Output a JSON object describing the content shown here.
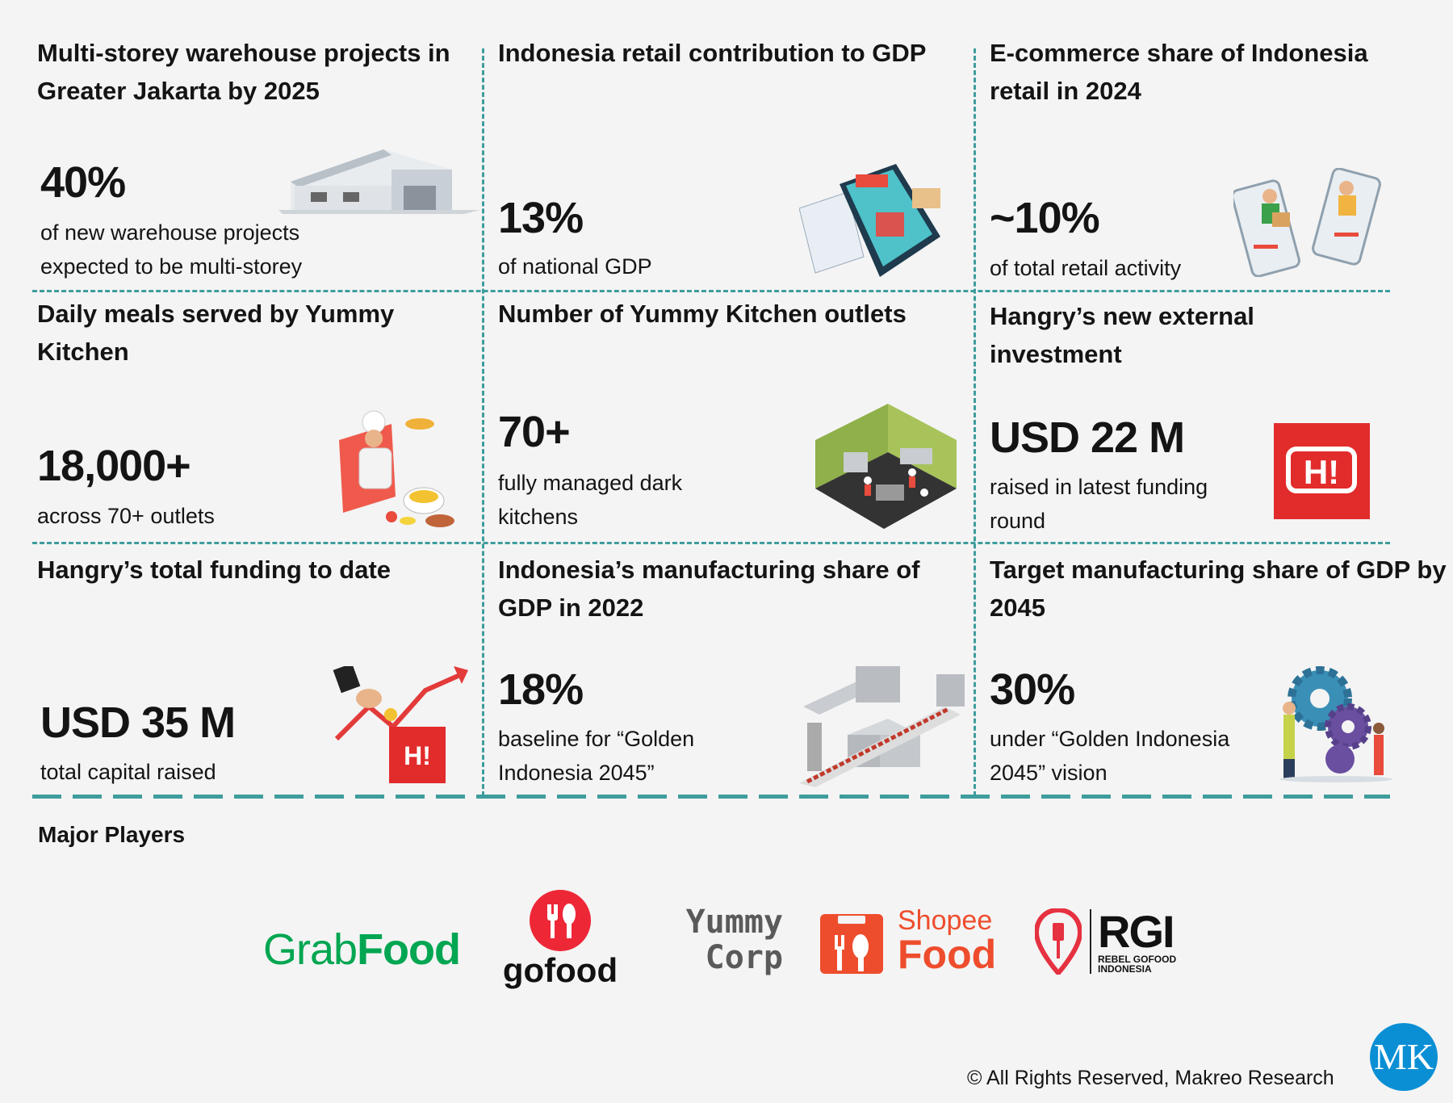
{
  "colors": {
    "divider": "#3e9d9d",
    "background": "#f4f4f4",
    "grab": "#00a651",
    "gofood": "#ee2737",
    "shopee": "#ee4d2d",
    "hangry": "#e22b2b",
    "makreo": "#0b8fd4"
  },
  "cells": [
    {
      "title": "Multi-storey warehouse projects in Greater Jakarta by 2025",
      "value": "40%",
      "desc": "of new warehouse projects expected to be multi-storey",
      "icon": "warehouse-icon"
    },
    {
      "title": "Indonesia retail contribution to GDP",
      "value": "13%",
      "desc": "of national GDP",
      "icon": "online-shop-icon"
    },
    {
      "title": "E-commerce share of Indonesia retail in 2024",
      "value": "~10%",
      "desc": "of total retail activity",
      "icon": "phone-delivery-icon"
    },
    {
      "title": "Daily meals served by Yummy Kitchen",
      "value": "18,000+",
      "desc": "across 70+ outlets",
      "icon": "chef-icon"
    },
    {
      "title": "Number of Yummy Kitchen outlets",
      "value": "70+",
      "desc": "fully managed dark kitchens",
      "icon": "kitchen-icon"
    },
    {
      "title": "Hangry’s new external investment",
      "value": "USD 22 M",
      "desc": "raised in latest funding round",
      "icon": "hangry-logo-icon"
    },
    {
      "title": "Hangry’s total funding to date",
      "value": "USD 35 M",
      "desc": "total capital raised",
      "icon": "funding-growth-icon"
    },
    {
      "title": "Indonesia’s manufacturing share of GDP in 2022",
      "value": "18%",
      "desc": "baseline for “Golden Indonesia 2045”",
      "icon": "factory-icon"
    },
    {
      "title": "Target manufacturing share of GDP by 2045",
      "value": "30%",
      "desc": "under “Golden Indonesia 2045” vision",
      "icon": "gears-icon"
    }
  ],
  "players": {
    "heading": "Major Players",
    "logos": [
      {
        "name": "GrabFood",
        "part1": "Grab",
        "part2": "Food"
      },
      {
        "name": "gofood",
        "part1": "gofood"
      },
      {
        "name": "Yummy Corp",
        "part1": "Yummy",
        "part2": "Corp"
      },
      {
        "name": "ShopeeFood",
        "part1": "Shopee",
        "part2": "Food"
      },
      {
        "name": "RGI",
        "part1": "RGI",
        "part2": "REBEL GOFOOD",
        "part3": "INDONESIA"
      }
    ]
  },
  "footer": {
    "copyright": "© All Rights Reserved, Makreo Research",
    "logo_text": "MK"
  }
}
